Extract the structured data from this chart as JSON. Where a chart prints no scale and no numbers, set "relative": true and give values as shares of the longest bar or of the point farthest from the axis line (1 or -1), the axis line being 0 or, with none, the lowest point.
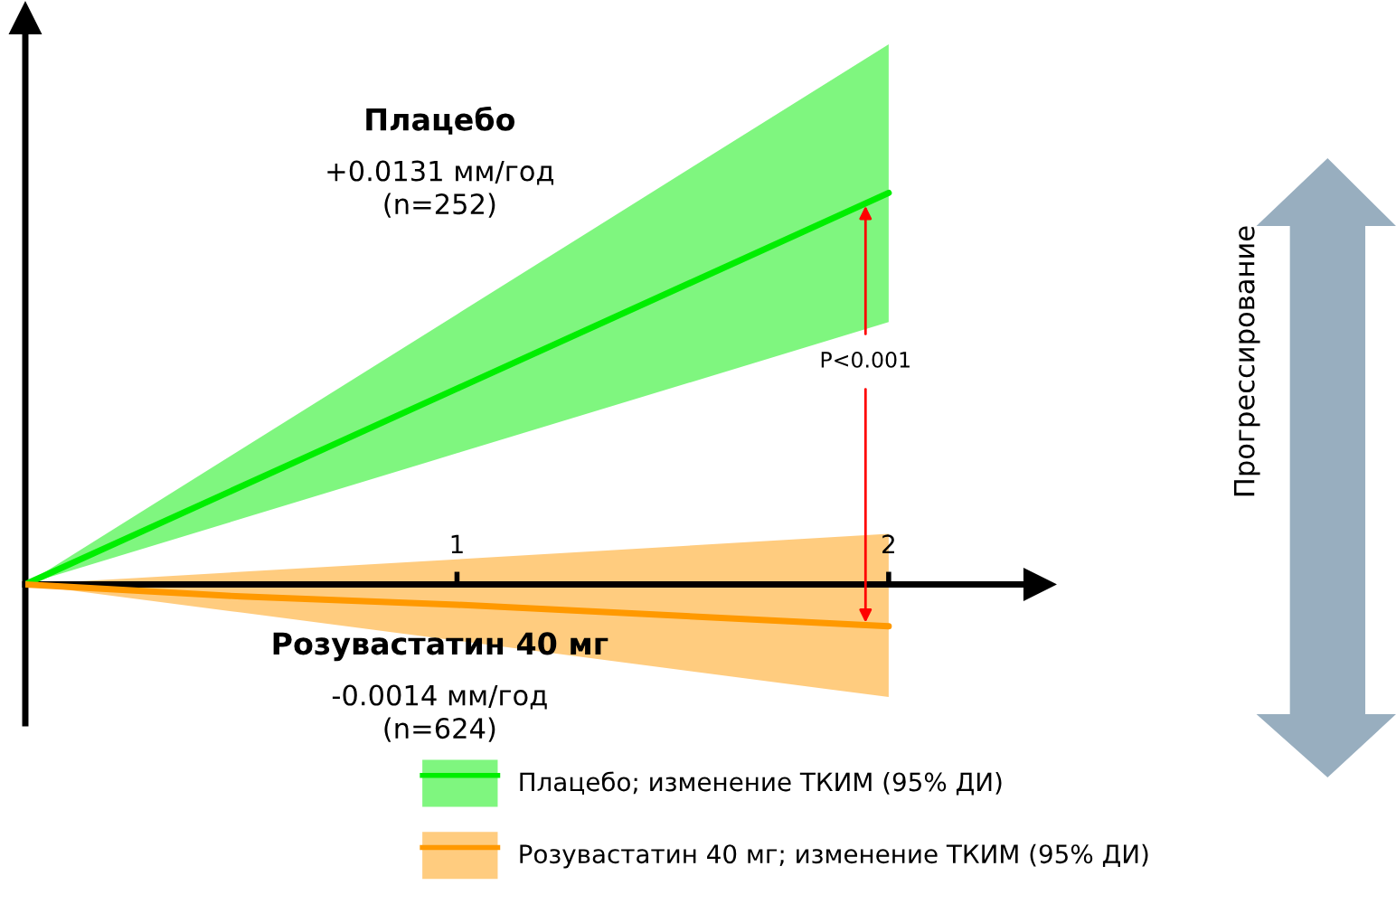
{
  "chart_data": {
    "type": "line",
    "relative": true,
    "xlim": [
      0,
      2.35
    ],
    "xticks": [
      1,
      2
    ],
    "tick_labels": "x",
    "series": [
      {
        "name": "Плацебо; изменение ТКИМ (95% ДИ)",
        "color": "#00ee00",
        "x": [
          0,
          1,
          2
        ],
        "values": [
          0,
          0.5,
          1
        ],
        "lower": [
          0,
          0.335,
          0.67
        ],
        "upper": [
          0,
          0.69,
          1.38
        ]
      },
      {
        "name": "Розувастатин 40 мг; изменение ТКИМ (95% ДИ)",
        "color": "#ff9900",
        "x": [
          0,
          0.5,
          1,
          2
        ],
        "values": [
          0,
          -0.031,
          -0.052,
          -0.107
        ],
        "lower": [
          0,
          -0.072,
          -0.144,
          -0.288
        ],
        "upper": [
          0,
          0.032,
          0.064,
          0.129
        ]
      }
    ],
    "annotations": [
      "Плацебо",
      "+0.0131 мм/год\n(n=252)",
      "Розувастатин 40 мг",
      "-0.0014 мм/год\n(n=624)",
      "P<0.001",
      "Прогрессирование"
    ],
    "legend": "bottom",
    "grid": false
  }
}
